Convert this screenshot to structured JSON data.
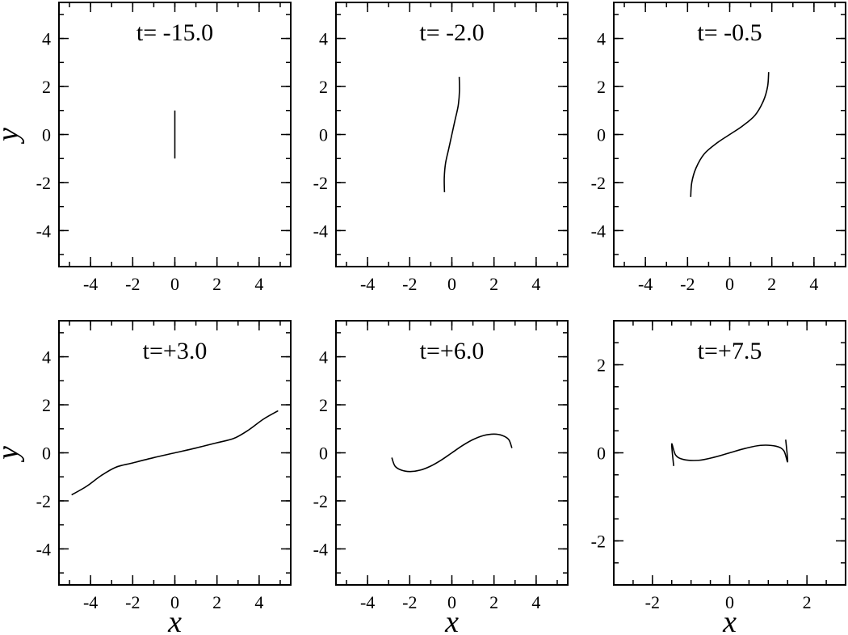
{
  "chart_data": [
    {
      "type": "line",
      "title": "t= -15.0",
      "xlabel": "",
      "ylabel": "y",
      "xlim": [
        -5.5,
        5.5
      ],
      "ylim": [
        -5.5,
        5.5
      ],
      "xticks": [
        -4,
        -2,
        0,
        2,
        4
      ],
      "yticks": [
        -4,
        -2,
        0,
        2,
        4
      ],
      "xtick_labels": [
        "-4",
        "-2",
        "0",
        "2",
        "4"
      ],
      "ytick_labels": [
        "-4",
        "-2",
        "0",
        "2",
        "4"
      ],
      "minor_step": 1,
      "grid": false,
      "series": [
        {
          "x": [
            0,
            0
          ],
          "y": [
            -1,
            1
          ]
        }
      ]
    },
    {
      "type": "line",
      "title": "t= -2.0",
      "xlabel": "",
      "ylabel": "",
      "xlim": [
        -5.5,
        5.5
      ],
      "ylim": [
        -5.5,
        5.5
      ],
      "xticks": [
        -4,
        -2,
        0,
        2,
        4
      ],
      "yticks": [
        -4,
        -2,
        0,
        2,
        4
      ],
      "xtick_labels": [
        "-4",
        "-2",
        "0",
        "2",
        "4"
      ],
      "ytick_labels": [
        "-4",
        "-2",
        "0",
        "2",
        "4"
      ],
      "minor_step": 1,
      "grid": false,
      "series": [
        {
          "x": [
            -0.35,
            -0.36,
            -0.3,
            -0.15,
            0.0,
            0.15,
            0.3,
            0.36,
            0.35
          ],
          "y": [
            -2.4,
            -1.8,
            -1.2,
            -0.6,
            0.0,
            0.6,
            1.2,
            1.8,
            2.4
          ]
        }
      ]
    },
    {
      "type": "line",
      "title": "t= -0.5",
      "xlabel": "",
      "ylabel": "",
      "xlim": [
        -5.5,
        5.5
      ],
      "ylim": [
        -5.5,
        5.5
      ],
      "xticks": [
        -4,
        -2,
        0,
        2,
        4
      ],
      "yticks": [
        -4,
        -2,
        0,
        2,
        4
      ],
      "xtick_labels": [
        "-4",
        "-2",
        "0",
        "2",
        "4"
      ],
      "ytick_labels": [
        "-4",
        "-2",
        "0",
        "2",
        "4"
      ],
      "minor_step": 1,
      "grid": false,
      "series": [
        {
          "x": [
            -1.85,
            -1.8,
            -1.6,
            -1.2,
            -0.6,
            0.0,
            0.6,
            1.2,
            1.6,
            1.8,
            1.85
          ],
          "y": [
            -2.6,
            -2.0,
            -1.4,
            -0.8,
            -0.35,
            0.0,
            0.35,
            0.8,
            1.4,
            2.0,
            2.6
          ]
        }
      ]
    },
    {
      "type": "line",
      "title": "t=+3.0",
      "xlabel": "x",
      "ylabel": "y",
      "xlim": [
        -5.5,
        5.5
      ],
      "ylim": [
        -5.5,
        5.5
      ],
      "xticks": [
        -4,
        -2,
        0,
        2,
        4
      ],
      "yticks": [
        -4,
        -2,
        0,
        2,
        4
      ],
      "xtick_labels": [
        "-4",
        "-2",
        "0",
        "2",
        "4"
      ],
      "ytick_labels": [
        "-4",
        "-2",
        "0",
        "2",
        "4"
      ],
      "minor_step": 1,
      "grid": false,
      "series": [
        {
          "x": [
            -4.9,
            -4.2,
            -3.5,
            -2.8,
            -2.0,
            -1.0,
            0.0,
            1.0,
            2.0,
            2.8,
            3.5,
            4.2,
            4.9
          ],
          "y": [
            -1.75,
            -1.4,
            -0.95,
            -0.6,
            -0.42,
            -0.2,
            0.0,
            0.2,
            0.42,
            0.6,
            0.95,
            1.4,
            1.75
          ]
        }
      ]
    },
    {
      "type": "line",
      "title": "t=+6.0",
      "xlabel": "x",
      "ylabel": "",
      "xlim": [
        -5.5,
        5.5
      ],
      "ylim": [
        -5.5,
        5.5
      ],
      "xticks": [
        -4,
        -2,
        0,
        2,
        4
      ],
      "yticks": [
        -4,
        -2,
        0,
        2,
        4
      ],
      "xtick_labels": [
        "-4",
        "-2",
        "0",
        "2",
        "4"
      ],
      "ytick_labels": [
        "-4",
        "-2",
        "0",
        "2",
        "4"
      ],
      "minor_step": 1,
      "grid": false,
      "series": [
        {
          "x": [
            -2.85,
            -2.7,
            -2.4,
            -2.0,
            -1.5,
            -1.0,
            -0.5,
            0.0,
            0.5,
            1.0,
            1.5,
            2.0,
            2.4,
            2.7,
            2.85
          ],
          "y": [
            -0.2,
            -0.55,
            -0.72,
            -0.78,
            -0.72,
            -0.55,
            -0.3,
            0.0,
            0.3,
            0.55,
            0.72,
            0.78,
            0.72,
            0.55,
            0.2
          ]
        }
      ]
    },
    {
      "type": "line",
      "title": "t=+7.5",
      "xlabel": "x",
      "ylabel": "",
      "xlim": [
        -3.0,
        3.0
      ],
      "ylim": [
        -3.0,
        3.0
      ],
      "xticks": [
        -2,
        0,
        2
      ],
      "yticks": [
        -2,
        0,
        2
      ],
      "xtick_labels": [
        "-2",
        "0",
        "2"
      ],
      "ytick_labels": [
        "-2",
        "0",
        "2"
      ],
      "minor_step": 0.5,
      "grid": false,
      "series": [
        {
          "x": [
            -1.45,
            -1.5,
            -1.4,
            -1.2,
            -0.8,
            -0.4,
            0.0,
            0.4,
            0.8,
            1.2,
            1.4,
            1.5,
            1.45
          ],
          "y": [
            -0.3,
            0.2,
            -0.05,
            -0.15,
            -0.17,
            -0.1,
            0.0,
            0.1,
            0.17,
            0.15,
            0.05,
            -0.2,
            0.3
          ]
        }
      ]
    }
  ]
}
